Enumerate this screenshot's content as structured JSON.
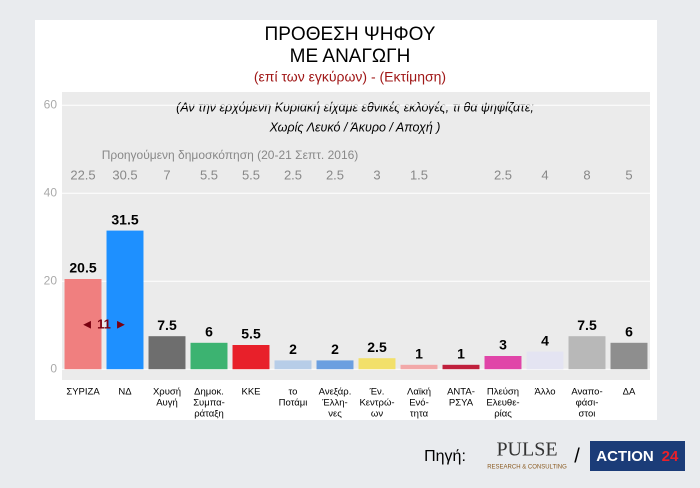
{
  "chart_data": {
    "type": "bar",
    "title": [
      "ΠΡΟΘΕΣΗ ΨΗΦΟΥ",
      "ΜΕ ΑΝΑΓΩΓΗ"
    ],
    "subtitle": "(επί των εγκύρων) - (Εκτίμηση)",
    "question": [
      "(Αν την ερχόμενη Κυριακή είχαμε εθνικές εκλογές, τι θα ψηφίζατε;",
      "Χωρίς Λευκό / Άκυρο / Αποχή )"
    ],
    "previous_label": "Προηγούμενη δημοσκόπηση (20-21 Σεπτ. 2016)",
    "categories": [
      [
        "ΣΥΡΙΖΑ"
      ],
      [
        "ΝΔ"
      ],
      [
        "Χρυσή",
        "Αυγή"
      ],
      [
        "Δημοκ.",
        "Συμπα-",
        "ράταξη"
      ],
      [
        "ΚΚΕ"
      ],
      [
        "το",
        "Ποτάμι"
      ],
      [
        "Ανεξάρ.",
        "Έλλη-",
        "νες"
      ],
      [
        "Έν.",
        "Κεντρώ-",
        "ων"
      ],
      [
        "Λαϊκή",
        "Ενό-",
        "τητα"
      ],
      [
        "ΑΝΤΑ-",
        "ΡΣΥΑ"
      ],
      [
        "Πλεύση",
        "Ελευθε-",
        "ρίας"
      ],
      [
        "Άλλο"
      ],
      [
        "Αναπο-",
        "φάσι-",
        "στοι"
      ],
      [
        "ΔΑ"
      ]
    ],
    "values": [
      20.5,
      31.5,
      7.5,
      6,
      5.5,
      2,
      2,
      2.5,
      1,
      1,
      3,
      4,
      7.5,
      6
    ],
    "previous_values": [
      22.5,
      30.5,
      7,
      5.5,
      5.5,
      2.5,
      2.5,
      3,
      1.5,
      null,
      2.5,
      4,
      8,
      5
    ],
    "colors": [
      "#f07f7f",
      "#1e90ff",
      "#6e6e6e",
      "#3cb371",
      "#e8202a",
      "#b7cde8",
      "#6b9fe0",
      "#f2e06a",
      "#f2a8a8",
      "#c0203c",
      "#e045a8",
      "#e4e4f2",
      "#b8b8b8",
      "#8e8e8e"
    ],
    "gap_label": "◄ 11 ►",
    "ylim": [
      -2,
      61
    ],
    "yticks": [
      0,
      20,
      40,
      60
    ],
    "grid": true,
    "source_label": "Πηγή:",
    "source_names": [
      "PULSE",
      "RESEARCH & CONSULTING",
      "/",
      "ACTION",
      "24"
    ]
  }
}
